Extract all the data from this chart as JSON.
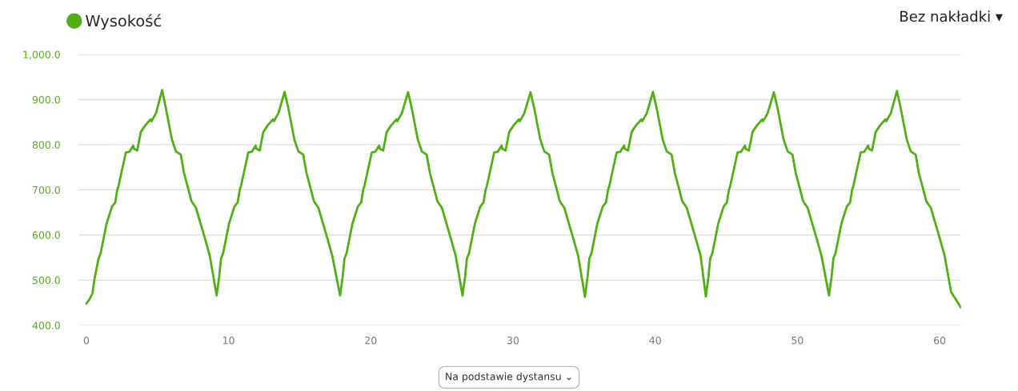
{
  "chart_data": {
    "type": "line",
    "x": [
      0,
      0.21,
      0.43,
      0.58,
      0.86,
      1.01,
      1.42,
      1.8,
      2.03,
      2.18,
      2.25,
      2.78,
      3.02,
      3.3,
      3.34,
      3.58,
      3.83,
      4.15,
      4.52,
      4.58,
      4.9,
      5.33,
      5.59,
      6.02,
      6.3,
      6.64,
      6.87,
      7.15,
      7.39,
      7.71,
      8.37,
      8.68,
      9.16,
      9.34,
      9.47,
      9.62,
      10.03,
      10.41,
      10.64,
      10.79,
      10.86,
      11.39,
      11.63,
      11.91,
      11.95,
      12.19,
      12.44,
      12.76,
      13.13,
      13.19,
      13.51,
      13.94,
      14.2,
      14.63,
      14.91,
      15.25,
      15.48,
      15.76,
      16.0,
      16.32,
      16.98,
      17.29,
      17.84,
      18.02,
      18.15,
      18.3,
      18.71,
      19.09,
      19.32,
      19.47,
      19.54,
      20.07,
      20.31,
      20.59,
      20.63,
      20.87,
      21.12,
      21.44,
      21.81,
      21.87,
      22.19,
      22.62,
      22.88,
      23.31,
      23.59,
      23.93,
      24.16,
      24.44,
      24.68,
      25.0,
      25.66,
      25.97,
      26.45,
      26.63,
      26.76,
      26.91,
      27.32,
      27.7,
      27.93,
      28.08,
      28.15,
      28.68,
      28.92,
      29.2,
      29.24,
      29.48,
      29.73,
      30.05,
      30.42,
      30.48,
      30.8,
      31.23,
      31.49,
      31.92,
      32.2,
      32.54,
      32.77,
      33.05,
      33.29,
      33.61,
      34.27,
      34.58,
      35.06,
      35.24,
      35.37,
      35.52,
      35.93,
      36.31,
      36.54,
      36.69,
      36.76,
      37.29,
      37.53,
      37.81,
      37.85,
      38.09,
      38.34,
      38.66,
      39.03,
      39.09,
      39.41,
      39.84,
      40.1,
      40.53,
      40.81,
      41.15,
      41.38,
      41.66,
      41.9,
      42.22,
      42.88,
      43.19,
      43.56,
      43.74,
      43.87,
      44.02,
      44.43,
      44.81,
      45.04,
      45.19,
      45.26,
      45.79,
      46.03,
      46.31,
      46.35,
      46.59,
      46.84,
      47.16,
      47.53,
      47.59,
      47.91,
      48.34,
      48.6,
      49.03,
      49.31,
      49.65,
      49.88,
      50.16,
      50.4,
      50.72,
      51.38,
      51.69,
      52.22,
      52.4,
      52.53,
      52.68,
      53.09,
      53.47,
      53.7,
      53.85,
      53.92,
      54.45,
      54.69,
      54.97,
      55.01,
      55.25,
      55.5,
      55.82,
      56.19,
      56.25,
      56.57,
      57.0,
      57.26,
      57.69,
      57.97,
      58.31,
      58.54,
      58.82,
      59.06,
      59.38,
      60.04,
      60.35,
      60.8,
      61.5
    ],
    "series": [
      {
        "name": "Wysokość",
        "color": "#52ae15",
        "values": [
          448,
          457,
          471,
          504,
          548,
          560,
          625,
          663,
          672,
          701,
          707,
          783,
          784,
          798,
          791,
          787,
          828,
          843,
          856,
          852,
          870,
          921,
          881,
          811,
          785,
          778,
          737,
          704,
          675,
          660,
          589,
          554,
          466,
          507,
          548,
          560,
          625,
          663,
          672,
          701,
          707,
          783,
          784,
          798,
          791,
          787,
          828,
          843,
          856,
          852,
          870,
          917,
          881,
          811,
          785,
          778,
          737,
          704,
          675,
          660,
          589,
          554,
          466,
          507,
          548,
          560,
          625,
          663,
          672,
          701,
          707,
          783,
          784,
          798,
          791,
          787,
          828,
          843,
          856,
          852,
          870,
          916,
          881,
          811,
          785,
          778,
          737,
          704,
          675,
          660,
          589,
          554,
          466,
          507,
          548,
          560,
          625,
          663,
          672,
          701,
          707,
          783,
          784,
          798,
          791,
          787,
          828,
          843,
          856,
          852,
          870,
          916,
          881,
          811,
          785,
          778,
          737,
          704,
          675,
          660,
          589,
          554,
          463,
          507,
          548,
          560,
          625,
          663,
          672,
          701,
          707,
          783,
          784,
          798,
          791,
          787,
          828,
          843,
          856,
          852,
          870,
          917,
          881,
          811,
          785,
          778,
          737,
          704,
          675,
          660,
          589,
          554,
          464,
          507,
          548,
          560,
          625,
          663,
          672,
          701,
          707,
          783,
          784,
          798,
          791,
          787,
          828,
          843,
          856,
          852,
          870,
          916,
          881,
          811,
          785,
          778,
          737,
          704,
          675,
          660,
          589,
          554,
          466,
          507,
          548,
          560,
          625,
          663,
          672,
          701,
          707,
          783,
          784,
          798,
          791,
          787,
          828,
          843,
          856,
          852,
          870,
          919,
          881,
          811,
          785,
          778,
          737,
          704,
          675,
          660,
          589,
          554,
          474,
          439
        ]
      }
    ],
    "xlim": [
      -0.56,
      61.5
    ],
    "xticks": [
      0,
      10,
      20,
      30,
      40,
      50,
      60
    ],
    "ylim": [
      400,
      1000
    ],
    "yticks": [
      {
        "value": 400,
        "label": "400.0"
      },
      {
        "value": 500,
        "label": "500.0"
      },
      {
        "value": 600,
        "label": "600.0"
      },
      {
        "value": 700,
        "label": "700.0"
      },
      {
        "value": 800,
        "label": "800.0"
      },
      {
        "value": 900,
        "label": "900.0"
      },
      {
        "value": 1000,
        "label": "1,000.0"
      }
    ],
    "grid": "y",
    "legend": "top left",
    "marker": "none",
    "line_style": "solid",
    "annotations": [
      "Bez nakładki ▾",
      "Na podstawie dystansu ⌄"
    ]
  }
}
